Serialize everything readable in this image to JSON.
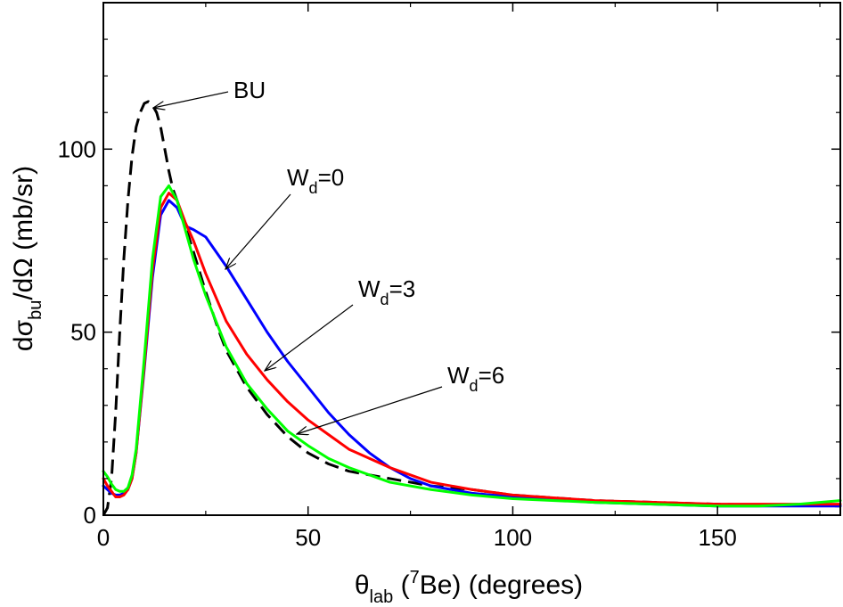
{
  "chart_data": {
    "type": "line",
    "title": "",
    "xlabel": {
      "prefix": "θ",
      "sub": "lab",
      "open": " (",
      "sup": "7",
      "rest": "Be) (degrees)"
    },
    "ylabel": {
      "prefix": "dσ",
      "sub": "bu",
      "rest": "/dΩ (mb/sr)"
    },
    "xlim": [
      0,
      180
    ],
    "ylim": [
      0,
      140
    ],
    "xticks": [
      0,
      50,
      100,
      150
    ],
    "xtick_labels": [
      "0",
      "50",
      "100",
      "150"
    ],
    "yticks": [
      0,
      50,
      100
    ],
    "ytick_labels": [
      "0",
      "50",
      "100"
    ],
    "grid": false,
    "series": [
      {
        "name": "BU",
        "color": "#000000",
        "dash": true,
        "x": [
          0,
          1,
          2,
          3,
          4,
          5,
          6,
          7,
          8,
          9,
          10,
          11,
          12,
          13,
          14,
          15,
          16,
          17,
          18,
          20,
          22,
          25,
          28,
          30,
          35,
          40,
          45,
          50,
          55,
          60,
          70,
          80,
          90,
          100,
          120,
          150,
          180
        ],
        "y": [
          0,
          2,
          10,
          28,
          50,
          70,
          86,
          98,
          106,
          110,
          112.5,
          113,
          112,
          110,
          106,
          100,
          94,
          89,
          86,
          79,
          72,
          61,
          51,
          45,
          35,
          27.5,
          21.5,
          17,
          14,
          12,
          10,
          8,
          7,
          5.5,
          4,
          3,
          2.5
        ]
      },
      {
        "name": "W_d=0",
        "color": "#0000ff",
        "dash": false,
        "x": [
          0,
          1,
          2,
          3,
          4,
          5,
          6,
          7,
          8,
          10,
          12,
          14,
          16,
          18,
          20,
          22,
          25,
          30,
          35,
          40,
          45,
          50,
          55,
          60,
          65,
          70,
          75,
          80,
          90,
          100,
          120,
          150,
          170,
          180
        ],
        "y": [
          8,
          7,
          6,
          5.5,
          5.5,
          6,
          7,
          10,
          17,
          40,
          65,
          82,
          86,
          84,
          79,
          78,
          76,
          68,
          59,
          50,
          42,
          35,
          28,
          22,
          17,
          13,
          10,
          8,
          6,
          5,
          3.5,
          2.5,
          2.5,
          2.5
        ]
      },
      {
        "name": "W_d=3",
        "color": "#ff0000",
        "dash": false,
        "x": [
          0,
          1,
          2,
          3,
          4,
          5,
          6,
          7,
          8,
          10,
          12,
          14,
          16,
          18,
          20,
          22,
          25,
          30,
          35,
          40,
          45,
          50,
          55,
          60,
          70,
          80,
          90,
          100,
          120,
          150,
          170,
          180
        ],
        "y": [
          10,
          8,
          6.5,
          5,
          5,
          5.5,
          7,
          10,
          17,
          41,
          67,
          84,
          88,
          86,
          80,
          75,
          66,
          53,
          44,
          37,
          31,
          26,
          22,
          18,
          13,
          9,
          7,
          5.5,
          4,
          3,
          3,
          3
        ]
      },
      {
        "name": "W_d=6",
        "color": "#00ff00",
        "dash": false,
        "x": [
          0,
          1,
          2,
          3,
          4,
          5,
          6,
          7,
          8,
          10,
          12,
          14,
          16,
          18,
          20,
          22,
          25,
          30,
          35,
          40,
          45,
          50,
          55,
          60,
          70,
          80,
          90,
          100,
          120,
          150,
          160,
          170,
          180
        ],
        "y": [
          12,
          10.5,
          8.5,
          7,
          6.5,
          6.5,
          7.5,
          11,
          18,
          43,
          70,
          87,
          90,
          86,
          78,
          70,
          60,
          46,
          36,
          29,
          23,
          19,
          15.5,
          13,
          9,
          7,
          5.5,
          4.5,
          3.5,
          2.5,
          2.5,
          3,
          4
        ]
      }
    ],
    "annotations": [
      {
        "main": "BU",
        "sub": "",
        "rest": ""
      },
      {
        "main": "W",
        "sub": "d",
        "rest": "=0"
      },
      {
        "main": "W",
        "sub": "d",
        "rest": "=3"
      },
      {
        "main": "W",
        "sub": "d",
        "rest": "=6"
      }
    ]
  }
}
